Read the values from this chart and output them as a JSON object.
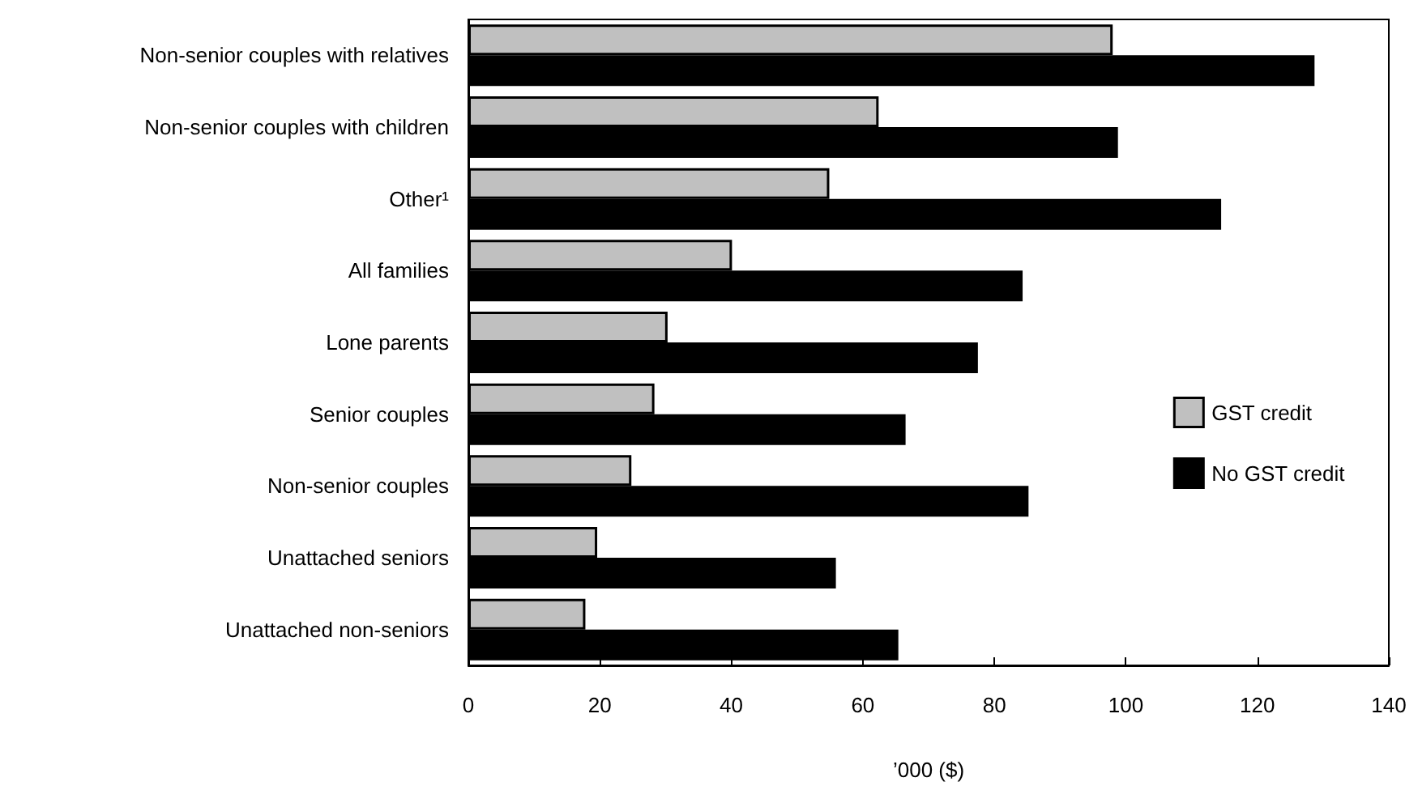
{
  "chart_data": {
    "type": "bar",
    "orientation": "horizontal",
    "xlabel": "’000 ($)",
    "categories": [
      "Non-senior couples with relatives",
      "Non-senior couples with children",
      "Other¹",
      "All families",
      "Lone parents",
      "Senior couples",
      "Non-senior couples",
      "Unattached seniors",
      "Unattached non-seniors"
    ],
    "series": [
      {
        "name": "GST credit",
        "color": "#c0c0c0",
        "values": [
          98,
          62.4,
          54.9,
          40.1,
          30.3,
          28.3,
          24.8,
          19.6,
          17.8
        ]
      },
      {
        "name": "No GST credit",
        "color": "#000000",
        "values": [
          128.7,
          98.8,
          114.5,
          84.3,
          77.5,
          66.5,
          85.2,
          55.9,
          65.4
        ]
      }
    ],
    "xlim": [
      0,
      140
    ],
    "xticks": [
      0,
      20,
      40,
      60,
      80,
      100,
      120,
      140
    ],
    "grid": false,
    "legend": "right"
  }
}
